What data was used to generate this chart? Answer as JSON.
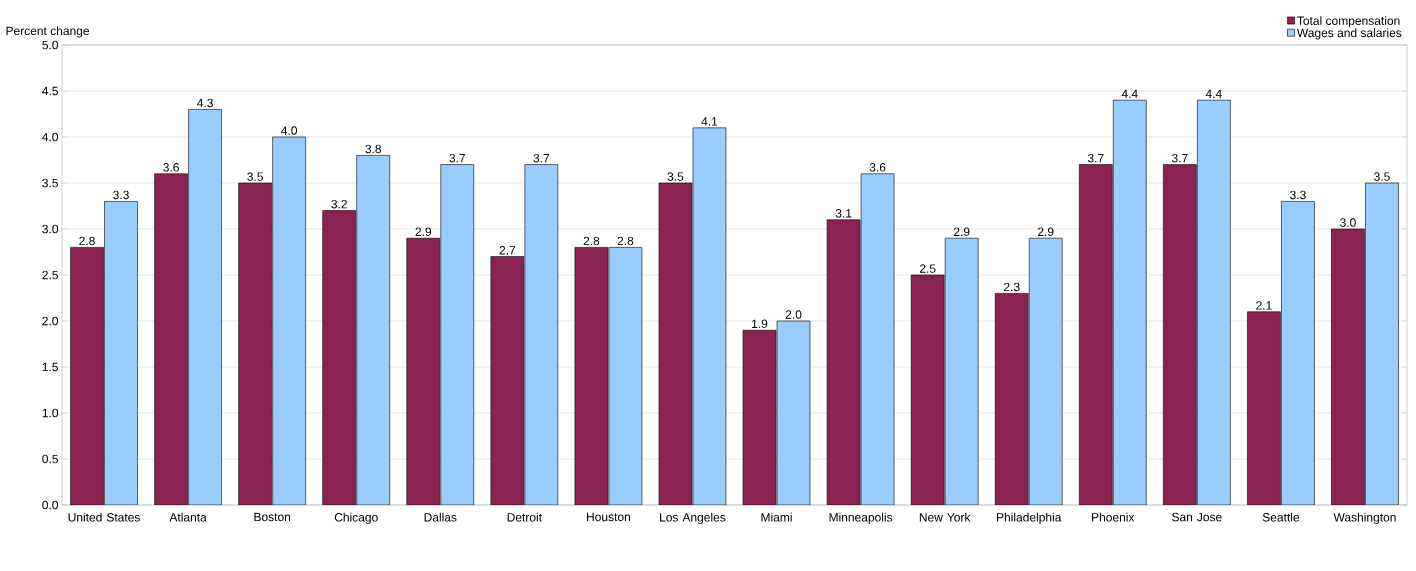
{
  "chart_data": {
    "type": "bar",
    "ylabel": "Percent change",
    "categories": [
      "United States",
      "Atlanta",
      "Boston",
      "Chicago",
      "Dallas",
      "Detroit",
      "Houston",
      "Los Angeles",
      "Miami",
      "Minneapolis",
      "New York",
      "Philadelphia",
      "Phoenix",
      "San Jose",
      "Seattle",
      "Washington"
    ],
    "series": [
      {
        "name": "Total compensation",
        "color": "#8b2352",
        "values": [
          2.8,
          3.6,
          3.5,
          3.2,
          2.9,
          2.7,
          2.8,
          3.5,
          1.9,
          3.1,
          2.5,
          2.3,
          3.7,
          3.7,
          2.1,
          3.0
        ],
        "value_labels": [
          "2.8",
          "3.6",
          "3.5",
          "3.2",
          "2.9",
          "2.7",
          "2.8",
          "3.5",
          "1.9",
          "3.1",
          "2.5",
          "2.3",
          "3.7",
          "3.7",
          "2.1",
          "3.0"
        ]
      },
      {
        "name": "Wages and salaries",
        "color": "#99ccff",
        "values": [
          3.3,
          4.3,
          4.0,
          3.8,
          3.7,
          3.7,
          2.8,
          4.1,
          2.0,
          3.6,
          2.9,
          2.9,
          4.4,
          4.4,
          3.3,
          3.5
        ],
        "value_labels": [
          "3.3",
          "4.3",
          "4.0",
          "3.8",
          "3.7",
          "3.7",
          "2.8",
          "4.1",
          "2.0",
          "3.6",
          "2.9",
          "2.9",
          "4.4",
          "4.4",
          "3.3",
          "3.5"
        ]
      }
    ],
    "ylim": [
      0,
      5
    ],
    "yticks": [
      {
        "value": 0,
        "label": "0.0"
      },
      {
        "value": 0.5,
        "label": "0.5"
      },
      {
        "value": 1,
        "label": "1.0"
      },
      {
        "value": 1.5,
        "label": "1.5"
      },
      {
        "value": 2,
        "label": "2.0"
      },
      {
        "value": 2.5,
        "label": "2.5"
      },
      {
        "value": 3,
        "label": "3.0"
      },
      {
        "value": 3.5,
        "label": "3.5"
      },
      {
        "value": 4,
        "label": "4.0"
      },
      {
        "value": 4.5,
        "label": "4.5"
      },
      {
        "value": 5,
        "label": "5.0"
      }
    ],
    "grid": "y",
    "legend": "top right"
  }
}
